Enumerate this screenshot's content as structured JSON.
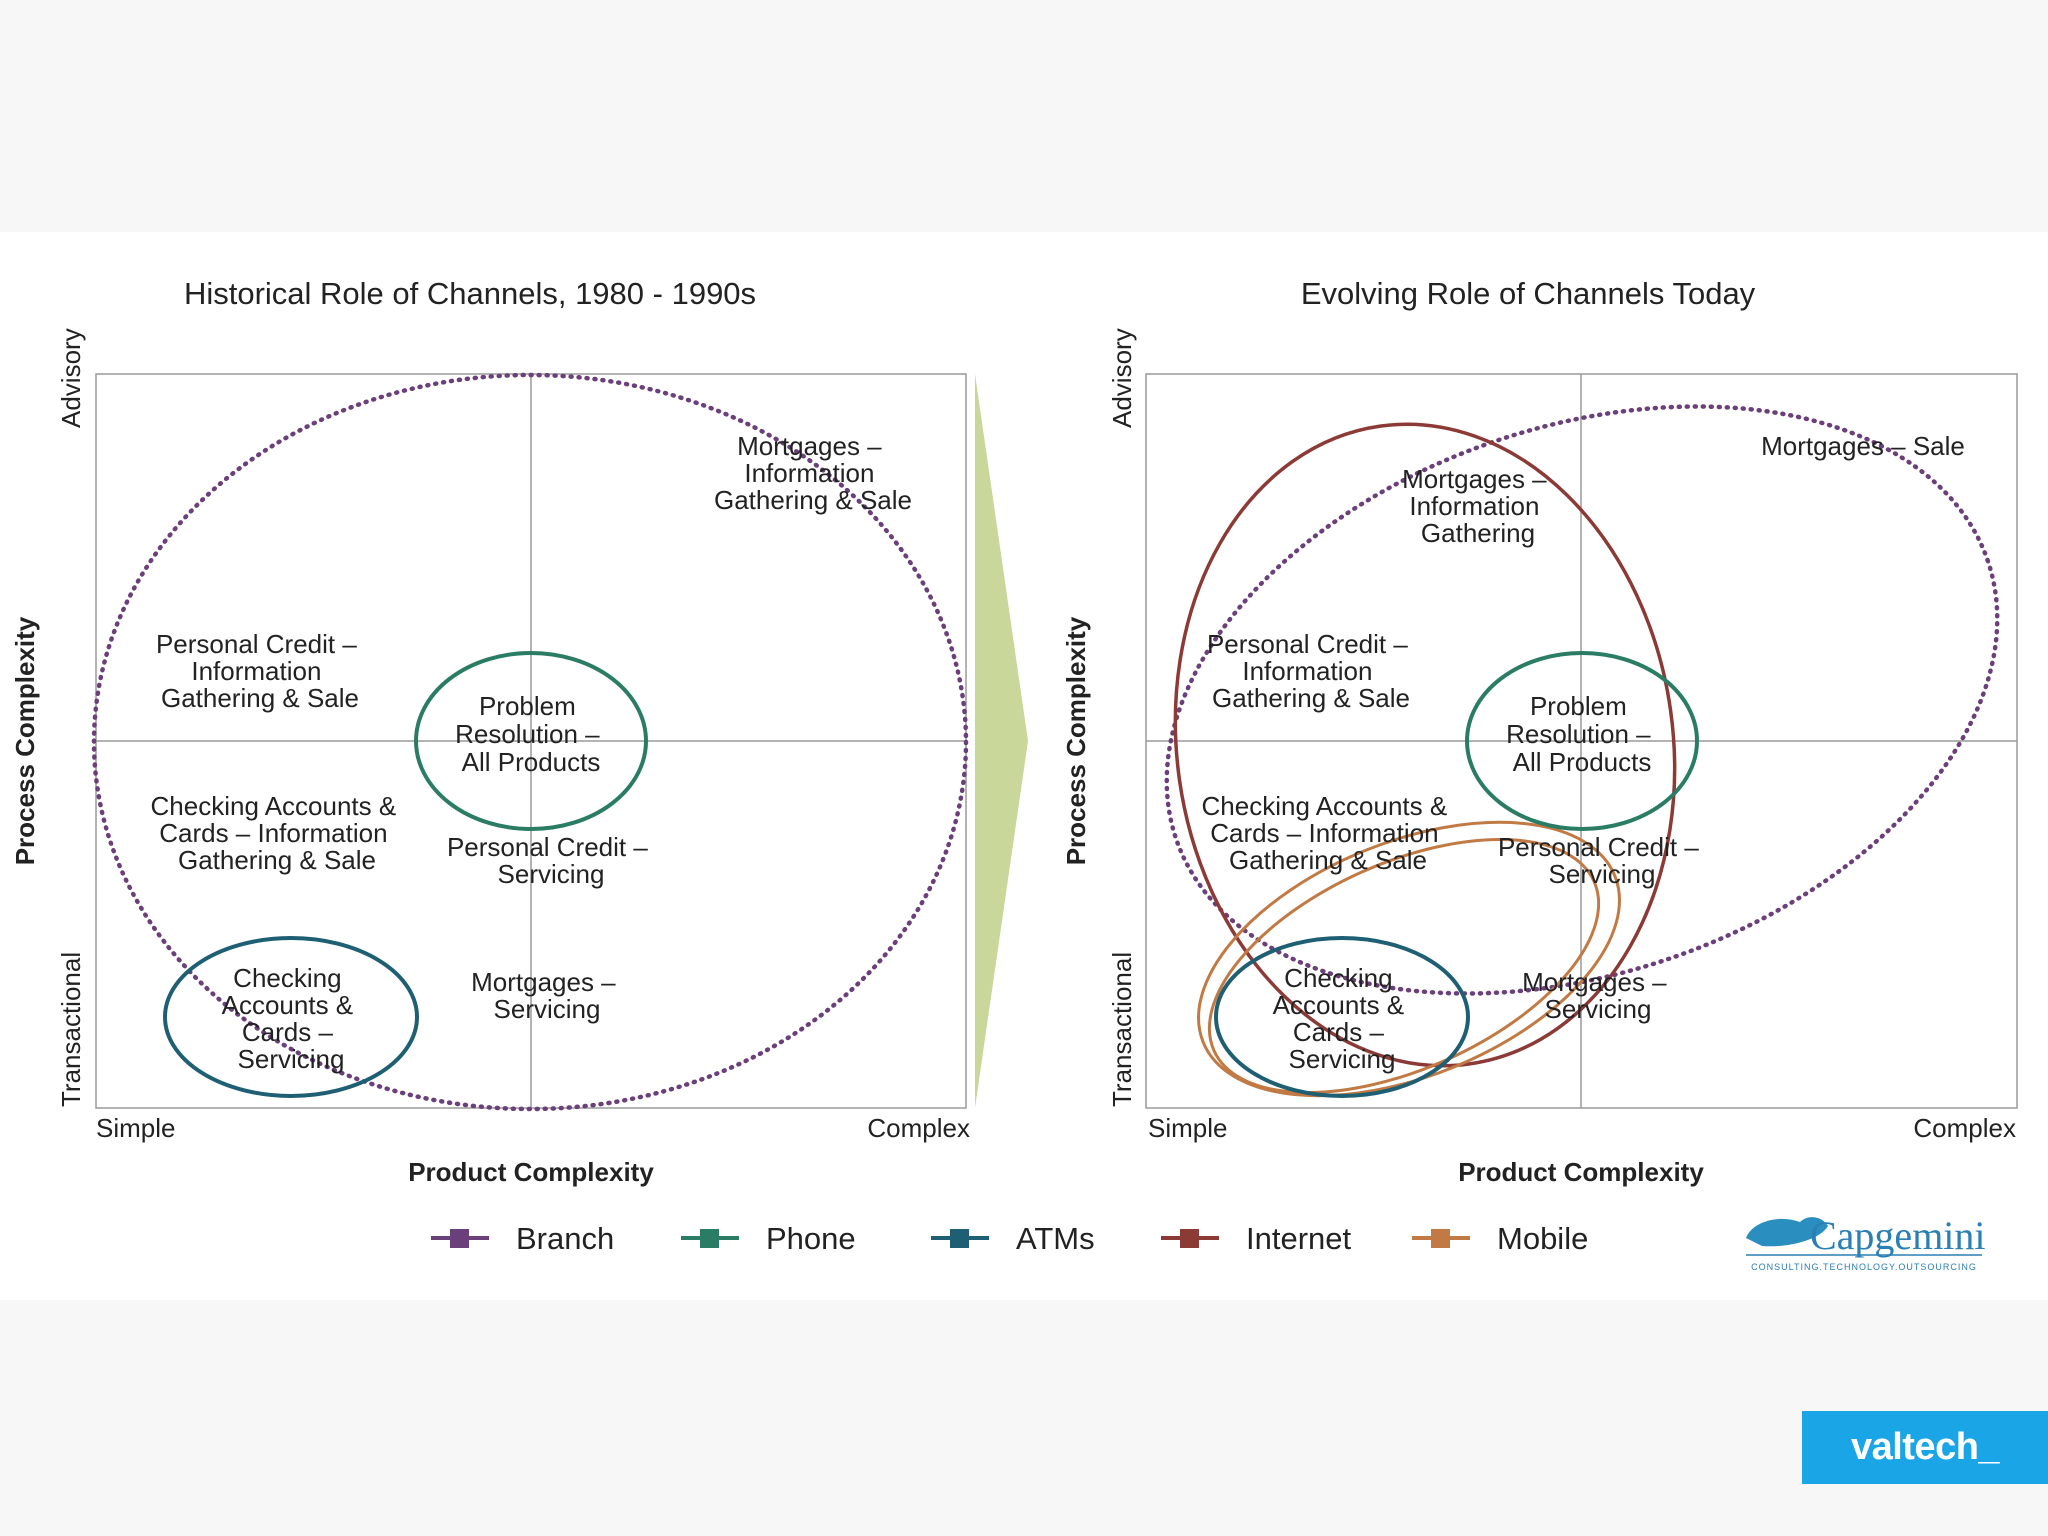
{
  "left_panel": {
    "title": "Historical Role of Channels, 1980 - 1990s",
    "y_axis_title": "Process Complexity",
    "y_top": "Advisory",
    "y_bottom": "Transactional",
    "x_axis_title": "Product Complexity",
    "x_left": "Simple",
    "x_right": "Complex",
    "labels": {
      "mortgages_info_sale": [
        "Mortgages –",
        "Information",
        "Gathering & Sale"
      ],
      "personal_credit_info_sale": [
        "Personal Credit –",
        "Information",
        "Gathering & Sale"
      ],
      "problem_resolution": [
        "Problem",
        "Resolution –",
        "All Products"
      ],
      "checking_info_sale": [
        "Checking Accounts &",
        "Cards – Information",
        "Gathering & Sale"
      ],
      "personal_credit_servicing": [
        "Personal Credit –",
        "Servicing"
      ],
      "checking_servicing": [
        "Checking",
        "Accounts &",
        "Cards –",
        "Servicing"
      ],
      "mortgages_servicing": [
        "Mortgages –",
        "Servicing"
      ]
    }
  },
  "right_panel": {
    "title": "Evolving Role of Channels Today",
    "y_axis_title": "Process Complexity",
    "y_top": "Advisory",
    "y_bottom": "Transactional",
    "x_axis_title": "Product Complexity",
    "x_left": "Simple",
    "x_right": "Complex",
    "labels": {
      "mortgages_sale": [
        "Mortgages – Sale"
      ],
      "mortgages_info": [
        "Mortgages –",
        "Information",
        "Gathering"
      ],
      "personal_credit_info_sale": [
        "Personal Credit –",
        "Information",
        "Gathering & Sale"
      ],
      "problem_resolution": [
        "Problem",
        "Resolution –",
        "All Products"
      ],
      "checking_info_sale": [
        "Checking Accounts &",
        "Cards – Information",
        "Gathering & Sale"
      ],
      "personal_credit_servicing": [
        "Personal Credit –",
        "Servicing"
      ],
      "checking_servicing": [
        "Checking",
        "Accounts &",
        "Cards –",
        "Servicing"
      ],
      "mortgages_servicing": [
        "Mortgages –",
        "Servicing"
      ]
    }
  },
  "legend": [
    {
      "name": "Branch",
      "color": "#6b3f7a"
    },
    {
      "name": "Phone",
      "color": "#2a7d64"
    },
    {
      "name": "ATMs",
      "color": "#1f5f73"
    },
    {
      "name": "Internet",
      "color": "#8c3a36"
    },
    {
      "name": "Mobile",
      "color": "#c27a45"
    }
  ],
  "colors": {
    "branch": "#6b3f7a",
    "phone": "#2a7d64",
    "atms": "#1f5f73",
    "internet": "#8c3a36",
    "mobile": "#c27a45",
    "arrow": "#c9d79a",
    "frame": "#9a9a9a",
    "brand_badge": "#1aa6e6"
  },
  "logo": {
    "name": "Capgemini",
    "tagline": "CONSULTING.TECHNOLOGY.OUTSOURCING"
  },
  "brand_badge": {
    "text": "valtech_"
  }
}
